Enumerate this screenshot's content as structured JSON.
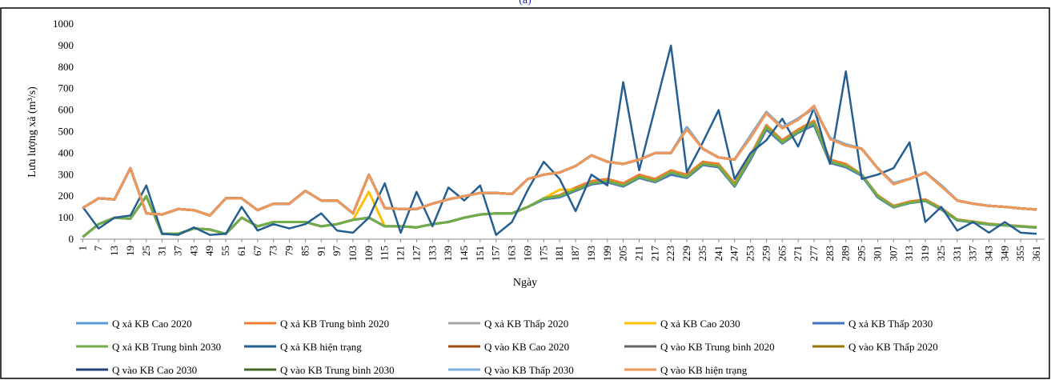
{
  "chart_data": {
    "type": "line",
    "title": "(a)",
    "x_label": "Ngày",
    "y_label": "Lưu lượng xả (m³/s)",
    "xlim": [
      0,
      364
    ],
    "ylim": [
      0,
      1000
    ],
    "yticks": [
      0,
      100,
      200,
      300,
      400,
      500,
      600,
      700,
      800,
      900,
      1000
    ],
    "xticks": [
      1,
      7,
      13,
      19,
      25,
      31,
      37,
      43,
      49,
      55,
      61,
      67,
      73,
      79,
      85,
      91,
      97,
      103,
      109,
      115,
      121,
      127,
      133,
      139,
      145,
      151,
      157,
      163,
      169,
      175,
      181,
      187,
      193,
      199,
      205,
      211,
      217,
      223,
      229,
      235,
      241,
      247,
      253,
      259,
      265,
      271,
      277,
      283,
      289,
      295,
      301,
      307,
      313,
      319,
      325,
      331,
      337,
      343,
      349,
      355,
      361
    ],
    "x": [
      1,
      7,
      13,
      19,
      25,
      31,
      37,
      43,
      49,
      55,
      61,
      67,
      73,
      79,
      85,
      91,
      97,
      103,
      109,
      115,
      121,
      127,
      133,
      139,
      145,
      151,
      157,
      163,
      169,
      175,
      181,
      187,
      193,
      199,
      205,
      211,
      217,
      223,
      229,
      235,
      241,
      247,
      253,
      259,
      265,
      271,
      277,
      283,
      289,
      295,
      301,
      307,
      313,
      319,
      325,
      331,
      337,
      343,
      349,
      355,
      361
    ],
    "series": [
      {
        "name": "Q xả KB Cao 2020",
        "color": "#5b9bd5",
        "values": [
          10,
          70,
          100,
          95,
          200,
          25,
          25,
          50,
          45,
          25,
          100,
          60,
          80,
          80,
          80,
          60,
          70,
          90,
          100,
          60,
          60,
          55,
          70,
          80,
          100,
          115,
          120,
          120,
          150,
          190,
          200,
          230,
          260,
          270,
          250,
          290,
          270,
          310,
          290,
          350,
          340,
          250,
          380,
          520,
          450,
          500,
          540,
          360,
          340,
          300,
          200,
          150,
          170,
          180,
          140,
          90,
          80,
          70,
          65,
          60,
          55
        ]
      },
      {
        "name": "Q xả KB Trung bình 2020",
        "color": "#ed7d31",
        "values": [
          10,
          70,
          100,
          95,
          200,
          25,
          25,
          50,
          45,
          25,
          100,
          60,
          80,
          80,
          80,
          60,
          70,
          90,
          100,
          60,
          60,
          55,
          70,
          80,
          100,
          115,
          120,
          120,
          150,
          190,
          205,
          240,
          270,
          280,
          260,
          300,
          280,
          320,
          300,
          360,
          350,
          260,
          390,
          530,
          460,
          510,
          550,
          370,
          350,
          300,
          205,
          155,
          175,
          185,
          145,
          92,
          82,
          72,
          66,
          61,
          56
        ]
      },
      {
        "name": "Q xả KB Thấp 2020",
        "color": "#a5a5a5",
        "values": [
          10,
          70,
          100,
          95,
          200,
          25,
          25,
          50,
          45,
          25,
          100,
          60,
          80,
          80,
          80,
          60,
          70,
          90,
          100,
          60,
          60,
          55,
          70,
          80,
          100,
          115,
          120,
          120,
          150,
          185,
          195,
          225,
          255,
          265,
          245,
          285,
          265,
          300,
          285,
          345,
          335,
          245,
          370,
          510,
          445,
          495,
          530,
          355,
          335,
          295,
          195,
          148,
          168,
          178,
          138,
          88,
          78,
          68,
          64,
          59,
          54
        ]
      },
      {
        "name": "Q xả KB Cao 2030",
        "color": "#ffc000",
        "values": [
          10,
          70,
          100,
          95,
          200,
          25,
          25,
          50,
          45,
          25,
          100,
          60,
          80,
          80,
          80,
          60,
          70,
          90,
          220,
          60,
          60,
          55,
          70,
          80,
          100,
          115,
          120,
          120,
          150,
          190,
          230,
          230,
          260,
          270,
          250,
          290,
          270,
          310,
          290,
          350,
          340,
          250,
          380,
          520,
          450,
          500,
          540,
          360,
          340,
          300,
          200,
          150,
          170,
          180,
          140,
          90,
          80,
          70,
          65,
          60,
          55
        ]
      },
      {
        "name": "Q xả KB Thấp 2030",
        "color": "#4472c4",
        "values": [
          10,
          70,
          100,
          95,
          200,
          25,
          25,
          50,
          45,
          25,
          100,
          60,
          80,
          80,
          80,
          60,
          70,
          90,
          100,
          60,
          60,
          55,
          70,
          80,
          100,
          115,
          120,
          120,
          150,
          185,
          195,
          225,
          255,
          265,
          245,
          285,
          265,
          300,
          285,
          345,
          335,
          245,
          370,
          510,
          445,
          495,
          530,
          355,
          335,
          295,
          195,
          148,
          168,
          178,
          138,
          88,
          78,
          68,
          64,
          59,
          54
        ]
      },
      {
        "name": "Q xả KB Trung bình 2030",
        "color": "#70ad47",
        "values": [
          10,
          70,
          100,
          95,
          200,
          25,
          25,
          50,
          45,
          25,
          100,
          60,
          80,
          80,
          80,
          60,
          70,
          90,
          100,
          60,
          60,
          55,
          70,
          80,
          100,
          115,
          120,
          120,
          150,
          190,
          200,
          230,
          260,
          270,
          250,
          290,
          270,
          310,
          290,
          350,
          340,
          250,
          380,
          520,
          450,
          500,
          540,
          360,
          340,
          300,
          200,
          150,
          170,
          180,
          140,
          90,
          80,
          70,
          65,
          60,
          55
        ]
      },
      {
        "name": "Q xả KB hiện trạng",
        "color": "#255e91",
        "values": [
          150,
          50,
          100,
          110,
          250,
          25,
          20,
          55,
          20,
          25,
          150,
          40,
          70,
          50,
          70,
          120,
          40,
          30,
          100,
          260,
          30,
          220,
          60,
          240,
          180,
          250,
          20,
          80,
          230,
          360,
          280,
          130,
          300,
          250,
          730,
          320,
          610,
          900,
          310,
          450,
          600,
          280,
          400,
          460,
          560,
          430,
          610,
          350,
          780,
          280,
          300,
          330,
          450,
          80,
          150,
          40,
          80,
          30,
          80,
          30,
          25
        ]
      },
      {
        "name": "Q vào KB Cao 2020",
        "color": "#9e480e",
        "values": [
          145,
          190,
          185,
          330,
          120,
          115,
          140,
          135,
          110,
          190,
          190,
          135,
          165,
          165,
          225,
          180,
          180,
          120,
          300,
          145,
          140,
          140,
          165,
          185,
          200,
          215,
          215,
          210,
          280,
          300,
          310,
          340,
          390,
          360,
          350,
          370,
          400,
          400,
          520,
          420,
          380,
          370,
          480,
          590,
          520,
          560,
          610,
          470,
          440,
          420,
          330,
          260,
          280,
          310,
          250,
          180,
          165,
          155,
          150,
          143,
          138
        ]
      },
      {
        "name": "Q vào KB Trung bình 2020",
        "color": "#636363",
        "values": [
          145,
          190,
          185,
          330,
          120,
          115,
          140,
          135,
          110,
          190,
          190,
          135,
          165,
          165,
          225,
          180,
          180,
          120,
          300,
          145,
          140,
          140,
          165,
          185,
          200,
          215,
          215,
          210,
          280,
          300,
          310,
          340,
          390,
          360,
          350,
          370,
          400,
          400,
          520,
          420,
          380,
          370,
          480,
          590,
          520,
          560,
          610,
          470,
          440,
          420,
          330,
          260,
          280,
          310,
          250,
          180,
          165,
          155,
          150,
          143,
          138
        ]
      },
      {
        "name": "Q vào KB Thấp 2020",
        "color": "#997300",
        "values": [
          145,
          190,
          185,
          330,
          120,
          115,
          140,
          135,
          110,
          190,
          190,
          135,
          165,
          165,
          225,
          180,
          180,
          120,
          300,
          145,
          140,
          140,
          165,
          185,
          200,
          215,
          215,
          210,
          280,
          300,
          310,
          340,
          390,
          360,
          350,
          370,
          400,
          400,
          520,
          420,
          380,
          370,
          480,
          590,
          520,
          560,
          610,
          470,
          440,
          420,
          330,
          260,
          280,
          310,
          250,
          180,
          165,
          155,
          150,
          143,
          138
        ]
      },
      {
        "name": "Q vào KB Cao 2030",
        "color": "#264478",
        "values": [
          145,
          190,
          185,
          330,
          120,
          115,
          140,
          135,
          110,
          190,
          190,
          135,
          165,
          165,
          225,
          180,
          180,
          120,
          300,
          145,
          140,
          140,
          165,
          185,
          200,
          215,
          215,
          210,
          280,
          300,
          310,
          340,
          390,
          360,
          350,
          370,
          400,
          400,
          520,
          420,
          380,
          370,
          480,
          590,
          520,
          560,
          610,
          470,
          440,
          420,
          330,
          260,
          280,
          310,
          250,
          180,
          165,
          155,
          150,
          143,
          138
        ]
      },
      {
        "name": "Q vào KB Trung bình 2030",
        "color": "#43682b",
        "values": [
          145,
          190,
          185,
          330,
          120,
          115,
          140,
          135,
          110,
          190,
          190,
          135,
          165,
          165,
          225,
          180,
          180,
          120,
          300,
          145,
          140,
          140,
          165,
          185,
          200,
          215,
          215,
          210,
          280,
          300,
          310,
          340,
          390,
          360,
          350,
          370,
          400,
          400,
          520,
          420,
          380,
          370,
          480,
          590,
          520,
          560,
          610,
          470,
          440,
          420,
          330,
          260,
          280,
          310,
          250,
          180,
          165,
          155,
          150,
          143,
          138
        ]
      },
      {
        "name": "Q vào KB Thấp 2030",
        "color": "#7cafdd",
        "values": [
          145,
          190,
          185,
          330,
          120,
          115,
          140,
          135,
          110,
          190,
          190,
          135,
          165,
          165,
          225,
          180,
          180,
          120,
          300,
          145,
          140,
          140,
          165,
          185,
          200,
          215,
          215,
          210,
          280,
          300,
          310,
          340,
          390,
          360,
          350,
          370,
          400,
          400,
          520,
          420,
          380,
          370,
          480,
          590,
          520,
          560,
          610,
          470,
          440,
          420,
          330,
          260,
          280,
          310,
          250,
          180,
          165,
          155,
          150,
          143,
          138
        ]
      },
      {
        "name": "Q vào KB hiện trạng",
        "color": "#f1975a",
        "values": [
          145,
          190,
          185,
          330,
          120,
          115,
          140,
          135,
          110,
          190,
          190,
          135,
          165,
          165,
          225,
          180,
          180,
          120,
          300,
          145,
          140,
          140,
          165,
          185,
          200,
          215,
          215,
          210,
          280,
          300,
          310,
          340,
          390,
          360,
          350,
          370,
          400,
          400,
          510,
          420,
          380,
          370,
          470,
          585,
          515,
          555,
          620,
          465,
          435,
          420,
          330,
          255,
          280,
          310,
          245,
          180,
          165,
          155,
          150,
          143,
          138
        ]
      }
    ]
  }
}
